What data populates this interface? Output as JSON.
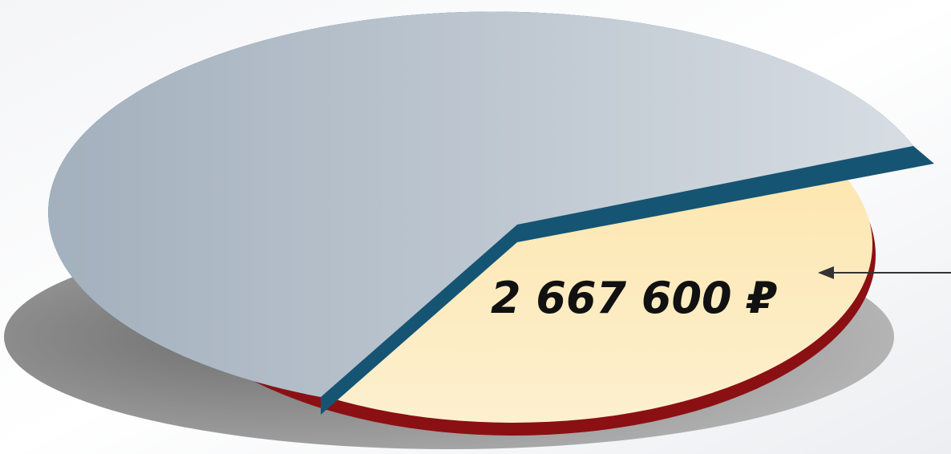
{
  "label": "2 667 600 ₽"
}
